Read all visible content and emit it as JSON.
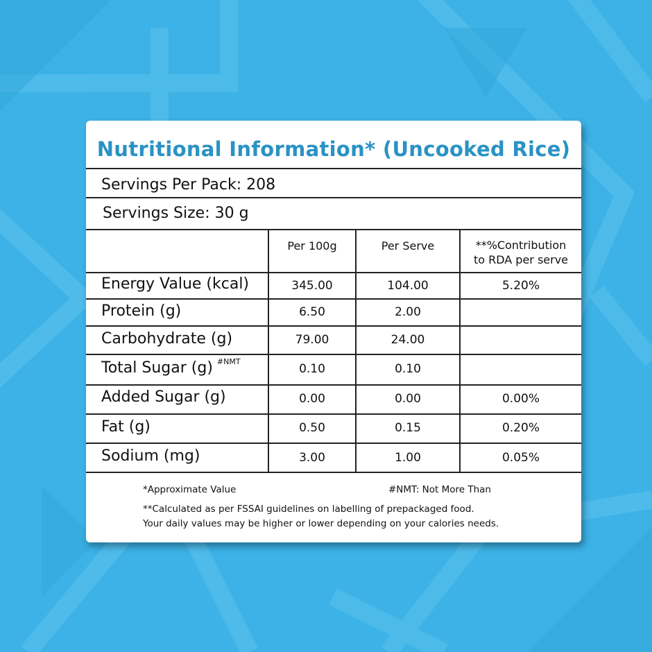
{
  "title": "Nutritional Information* (Uncooked Rice)",
  "servings_per_pack": "Servings Per Pack: 208",
  "serving_size": "Servings Size: 30 g",
  "columns": [
    "Per 100g",
    "Per Serve",
    "**%Contribution",
    "to RDA per serve"
  ],
  "rows": [
    {
      "label": "Energy Value (kcal)",
      "per100": "345.00",
      "perServe": "104.00",
      "rda": "5.20%"
    },
    {
      "label": "Protein (g)",
      "per100": "6.50",
      "perServe": "2.00",
      "rda": ""
    },
    {
      "label": "Carbohydrate (g)",
      "per100": "79.00",
      "perServe": "24.00",
      "rda": ""
    },
    {
      "label": "Total Sugar (g)",
      "note": "#NMT",
      "per100": "0.10",
      "perServe": "0.10",
      "rda": ""
    },
    {
      "label": "Added Sugar (g)",
      "per100": "0.00",
      "perServe": "0.00",
      "rda": "0.00%"
    },
    {
      "label": "Fat (g)",
      "per100": "0.50",
      "perServe": "0.15",
      "rda": "0.20%"
    },
    {
      "label": "Sodium (mg)",
      "per100": "3.00",
      "perServe": "1.00",
      "rda": "0.05%"
    }
  ],
  "footnotes": {
    "approx": "*Approximate Value",
    "nmt": "#NMT: Not More Than",
    "fssai_1": "**Calculated as per FSSAI guidelines on labelling of prepackaged food.",
    "fssai_2": "Your daily values may be higher or lower depending on your calories needs."
  }
}
